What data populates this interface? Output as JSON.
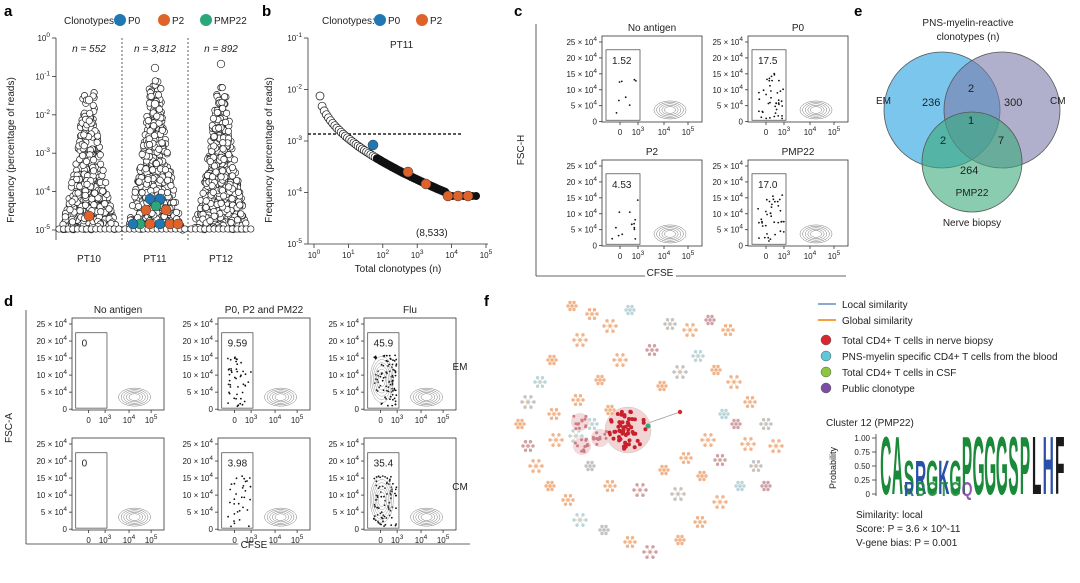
{
  "panels": {
    "a": {
      "label": "a",
      "legend_title": "Clonotypes:",
      "legend": [
        {
          "name": "P0",
          "color": "#1f77b4"
        },
        {
          "name": "P2",
          "color": "#e0622b"
        },
        {
          "name": "PMP22",
          "color": "#2aa879"
        }
      ],
      "ylabel": "Frequency (percentage of reads)",
      "yticks": [
        "10^0",
        "10^-1",
        "10^-2",
        "10^-3",
        "10^-4",
        "10^-5"
      ],
      "groups": [
        {
          "name": "PT10",
          "n": "n = 552"
        },
        {
          "name": "PT11",
          "n": "n = 3,812"
        },
        {
          "name": "PT12",
          "n": "n = 892"
        }
      ]
    },
    "b": {
      "label": "b",
      "legend_title": "Clonotypes:",
      "legend": [
        {
          "name": "P0",
          "color": "#1f77b4"
        },
        {
          "name": "P2",
          "color": "#e0622b"
        }
      ],
      "title": "PT11",
      "ylabel": "Frequency (percentage of reads)",
      "xlabel": "Total clonotypes (n)",
      "yticks": [
        "10^-1",
        "10^-2",
        "10^-3",
        "10^-4",
        "10^-5"
      ],
      "xticks": [
        "10^0",
        "10^1",
        "10^2",
        "10^3",
        "10^4",
        "10^5"
      ],
      "annotation": "(8,533)"
    },
    "c": {
      "label": "c",
      "ylabel": "FSC-H",
      "xlabel": "CFSE",
      "yticks": [
        "25 × 10^4",
        "20 × 10^4",
        "15 × 10^4",
        "10 × 10^4",
        "5 × 10^4",
        "0"
      ],
      "xticks": [
        "0",
        "10^3",
        "10^4",
        "10^5"
      ],
      "plots": [
        {
          "title": "No antigen",
          "value": "1.52"
        },
        {
          "title": "P0",
          "value": "17.5"
        },
        {
          "title": "P2",
          "value": "4.53"
        },
        {
          "title": "PMP22",
          "value": "17.0"
        }
      ]
    },
    "d": {
      "label": "d",
      "ylabel": "FSC-A",
      "xlabel": "CFSE",
      "yticks": [
        "25 × 10^4",
        "20 × 10^4",
        "15 × 10^4",
        "10 × 10^4",
        "5 × 10^4",
        "0"
      ],
      "xticks": [
        "0",
        "10^3",
        "10^4",
        "10^5"
      ],
      "columns": [
        "No antigen",
        "P0, P2 and PM22",
        "Flu"
      ],
      "rows": [
        "EM",
        "CM"
      ],
      "values": [
        [
          "0",
          "9.59",
          "45.9"
        ],
        [
          "0",
          "3.98",
          "35.4"
        ]
      ]
    },
    "e": {
      "label": "e",
      "title_line1": "PNS-myelin-reactive",
      "title_line2": "clonotypes (n)",
      "sets": [
        {
          "name": "EM",
          "color": "#4db3e6"
        },
        {
          "name": "CM",
          "color": "#8080b0"
        },
        {
          "name": "PMP22",
          "color": "#3aaa7a"
        }
      ],
      "bottom_label": "Nerve biopsy",
      "counts": {
        "em_only": "236",
        "cm_only": "300",
        "pmp_only": "264",
        "em_cm": "2",
        "em_pmp": "2",
        "cm_pmp": "7",
        "all": "1"
      }
    },
    "f": {
      "label": "f",
      "legend_lines": [
        {
          "label": "Local similarity",
          "color": "#8fa8d0"
        },
        {
          "label": "Global similarity",
          "color": "#f5a03a"
        }
      ],
      "legend_dots": [
        {
          "label": "Total CD4+ T cells in nerve biopsy",
          "color": "#d9262f"
        },
        {
          "label": "PNS-myelin specific CD4+ T cells from the blood",
          "color": "#5cc8d8"
        },
        {
          "label": "Total CD4+ T cells in CSF",
          "color": "#8cc63f"
        },
        {
          "label": "Public clonotype",
          "color": "#7b4ea3"
        }
      ],
      "cluster_title": "Cluster 12 (PMP22)",
      "logo_ylabel": "Probability",
      "logo_yticks": [
        "1.00",
        "0.75",
        "0.50",
        "0.25",
        "0"
      ],
      "logo_sequence": "CASRGKGPGGGSPLHF",
      "logo_alt": "RS",
      "similarity": "Similarity: local",
      "score": "Score: P = 3.6 × 10^-11",
      "vgene": "V-gene bias: P = 0.001"
    }
  }
}
